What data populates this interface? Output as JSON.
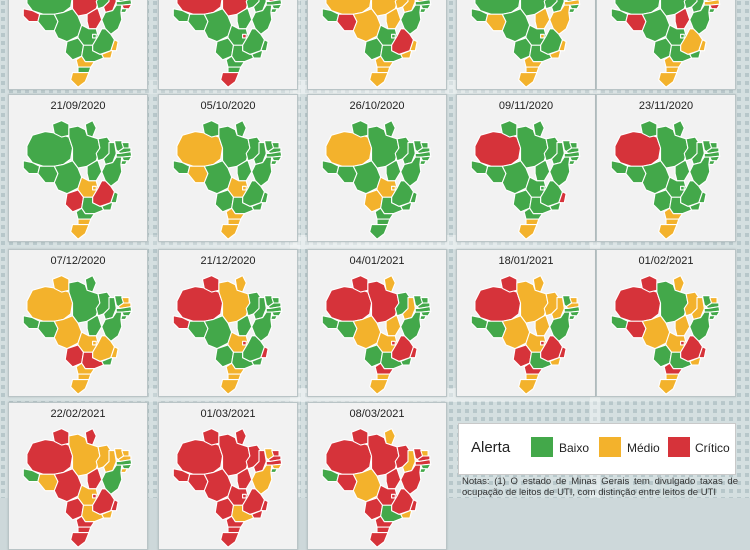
{
  "colors": {
    "baixo": "#43a84a",
    "medio": "#f3b22c",
    "critico": "#d6333a",
    "state_border": "#ffffff"
  },
  "panels": [
    {
      "date": "",
      "states": [
        "g",
        "g",
        "r",
        "r",
        "g",
        "r",
        "g",
        "g",
        "g",
        "g",
        "r",
        "g",
        "g",
        "r",
        "g",
        "g",
        "r",
        "g",
        "g",
        "g",
        "g",
        "o",
        "o",
        "g",
        "o",
        "g",
        "o"
      ]
    },
    {
      "date": "",
      "states": [
        "r",
        "g",
        "r",
        "r",
        "g",
        "g",
        "g",
        "r",
        "r",
        "g",
        "g",
        "g",
        "g",
        "g",
        "g",
        "g",
        "g",
        "g",
        "r",
        "g",
        "g",
        "g",
        "g",
        "g",
        "g",
        "g",
        "r"
      ]
    },
    {
      "date": "",
      "states": [
        "o",
        "g",
        "o",
        "o",
        "o",
        "o",
        "o",
        "r",
        "o",
        "g",
        "g",
        "g",
        "g",
        "g",
        "r",
        "o",
        "o",
        "g",
        "g",
        "g",
        "r",
        "o",
        "o",
        "g",
        "o",
        "o",
        "o"
      ]
    },
    {
      "date": "",
      "states": [
        "g",
        "g",
        "g",
        "g",
        "g",
        "g",
        "g",
        "g",
        "g",
        "o",
        "g",
        "g",
        "o",
        "g",
        "o",
        "g",
        "o",
        "g",
        "o",
        "g",
        "g",
        "o",
        "o",
        "g",
        "o",
        "o",
        "o"
      ]
    },
    {
      "date": "",
      "states": [
        "g",
        "g",
        "g",
        "g",
        "g",
        "g",
        "g",
        "o",
        "o",
        "o",
        "r",
        "g",
        "g",
        "g",
        "r",
        "g",
        "r",
        "g",
        "g",
        "g",
        "o",
        "o",
        "g",
        "g",
        "o",
        "o",
        "o"
      ]
    },
    {
      "date": "21/09/2020",
      "states": [
        "g",
        "g",
        "g",
        "g",
        "g",
        "g",
        "g",
        "g",
        "g",
        "g",
        "g",
        "g",
        "g",
        "g",
        "g",
        "g",
        "g",
        "o",
        "o",
        "r",
        "r",
        "g",
        "g",
        "g",
        "g",
        "o",
        "o"
      ]
    },
    {
      "date": "05/10/2020",
      "states": [
        "o",
        "g",
        "g",
        "g",
        "g",
        "g",
        "g",
        "g",
        "g",
        "g",
        "g",
        "g",
        "g",
        "g",
        "o",
        "g",
        "g",
        "o",
        "o",
        "g",
        "g",
        "g",
        "g",
        "g",
        "o",
        "o",
        "o"
      ]
    },
    {
      "date": "26/10/2020",
      "states": [
        "o",
        "g",
        "g",
        "g",
        "g",
        "g",
        "g",
        "g",
        "g",
        "g",
        "g",
        "g",
        "g",
        "g",
        "g",
        "g",
        "g",
        "o",
        "o",
        "o",
        "g",
        "g",
        "g",
        "g",
        "g",
        "g",
        "g"
      ]
    },
    {
      "date": "09/11/2020",
      "states": [
        "r",
        "g",
        "g",
        "g",
        "g",
        "g",
        "g",
        "g",
        "g",
        "g",
        "g",
        "g",
        "g",
        "g",
        "g",
        "g",
        "g",
        "g",
        "g",
        "g",
        "g",
        "r",
        "g",
        "g",
        "g",
        "o",
        "o"
      ]
    },
    {
      "date": "23/11/2020",
      "states": [
        "r",
        "g",
        "g",
        "g",
        "g",
        "g",
        "g",
        "g",
        "g",
        "g",
        "g",
        "g",
        "g",
        "g",
        "g",
        "g",
        "g",
        "g",
        "g",
        "g",
        "g",
        "g",
        "g",
        "g",
        "o",
        "o",
        "o"
      ]
    },
    {
      "date": "07/12/2020",
      "states": [
        "o",
        "o",
        "g",
        "g",
        "g",
        "g",
        "g",
        "o",
        "o",
        "g",
        "g",
        "g",
        "g",
        "g",
        "g",
        "o",
        "g",
        "o",
        "o",
        "r",
        "o",
        "o",
        "g",
        "r",
        "o",
        "o",
        "o"
      ]
    },
    {
      "date": "21/12/2020",
      "states": [
        "r",
        "r",
        "o",
        "o",
        "g",
        "g",
        "g",
        "g",
        "g",
        "g",
        "g",
        "g",
        "g",
        "r",
        "g",
        "g",
        "g",
        "o",
        "r",
        "g",
        "g",
        "r",
        "g",
        "g",
        "o",
        "o",
        "o"
      ]
    },
    {
      "date": "04/01/2021",
      "states": [
        "r",
        "r",
        "o",
        "r",
        "g",
        "o",
        "g",
        "g",
        "g",
        "g",
        "g",
        "g",
        "g",
        "g",
        "g",
        "o",
        "o",
        "o",
        "r",
        "g",
        "r",
        "r",
        "g",
        "g",
        "r",
        "o",
        "o"
      ]
    },
    {
      "date": "18/01/2021",
      "states": [
        "r",
        "r",
        "o",
        "o",
        "o",
        "o",
        "g",
        "o",
        "o",
        "g",
        "g",
        "g",
        "g",
        "g",
        "g",
        "o",
        "o",
        "o",
        "r",
        "r",
        "r",
        "r",
        "o",
        "g",
        "r",
        "o",
        "o"
      ]
    },
    {
      "date": "01/02/2021",
      "states": [
        "r",
        "r",
        "o",
        "g",
        "o",
        "o",
        "g",
        "o",
        "g",
        "g",
        "g",
        "g",
        "g",
        "g",
        "r",
        "o",
        "o",
        "o",
        "r",
        "g",
        "r",
        "r",
        "o",
        "g",
        "r",
        "o",
        "o"
      ]
    },
    {
      "date": "22/02/2021",
      "states": [
        "r",
        "r",
        "r",
        "o",
        "o",
        "o",
        "o",
        "o",
        "o",
        "g",
        "g",
        "o",
        "g",
        "g",
        "o",
        "r",
        "r",
        "o",
        "r",
        "r",
        "r",
        "r",
        "o",
        "o",
        "r",
        "r",
        "r"
      ]
    },
    {
      "date": "01/03/2021",
      "states": [
        "r",
        "r",
        "r",
        "r",
        "r",
        "r",
        "o",
        "r",
        "r",
        "r",
        "o",
        "g",
        "o",
        "r",
        "r",
        "r",
        "r",
        "r",
        "r",
        "r",
        "r",
        "r",
        "r",
        "o",
        "r",
        "r",
        "r"
      ]
    },
    {
      "date": "08/03/2021",
      "states": [
        "r",
        "r",
        "o",
        "r",
        "r",
        "o",
        "r",
        "o",
        "r",
        "r",
        "g",
        "g",
        "r",
        "g",
        "r",
        "o",
        "r",
        "r",
        "r",
        "r",
        "r",
        "r",
        "o",
        "g",
        "r",
        "r",
        "r"
      ]
    }
  ],
  "legend": {
    "title": "Alerta",
    "items": [
      {
        "label": "Baixo",
        "color": "#43a84a"
      },
      {
        "label": "Médio",
        "color": "#f3b22c"
      },
      {
        "label": "Crítico",
        "color": "#d6333a"
      }
    ]
  },
  "notes": "Notas: (1) O estado de Minas Gerais tem divulgado taxas de ocupação de leitos de UTI, com distinção entre leitos de UTI"
}
